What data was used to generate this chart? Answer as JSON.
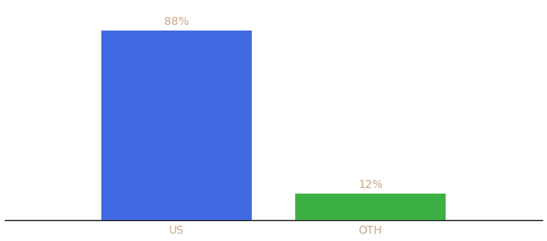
{
  "categories": [
    "US",
    "OTH"
  ],
  "values": [
    88,
    12
  ],
  "bar_colors": [
    "#4169e1",
    "#3cb043"
  ],
  "label_color": "#c8a882",
  "bar_width": 0.28,
  "ylim": [
    0,
    100
  ],
  "background_color": "#ffffff",
  "label_fontsize": 10,
  "tick_fontsize": 10,
  "tick_color": "#c8a882",
  "annotations": [
    "88%",
    "12%"
  ],
  "x_positions": [
    0.32,
    0.68
  ],
  "xlim": [
    0.0,
    1.0
  ]
}
